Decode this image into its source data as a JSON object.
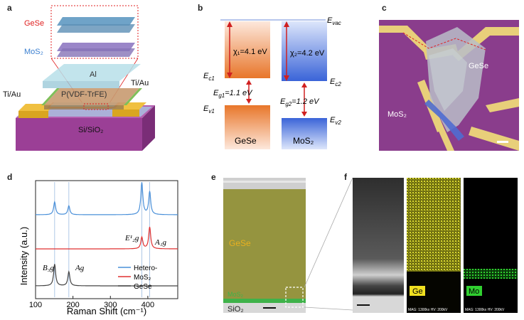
{
  "panels": {
    "a": {
      "label": "a",
      "inset_top": "GeSe",
      "inset_bottom": "MoS₂",
      "layer_al": "Al",
      "layer_pvdf": "P(VDF-TrFE)",
      "contact_left": "Ti/Au",
      "contact_right": "Ti/Au",
      "substrate": "Si/SiO₂"
    },
    "b": {
      "label": "b",
      "e_vac": "E",
      "e_vac_sub": "vac",
      "chi1": "χ₁=4.1 eV",
      "chi2": "χ₂=4.2 eV",
      "ec1": "E",
      "ec1_sub": "c1",
      "ec2": "E",
      "ec2_sub": "c2",
      "eg1": "E",
      "eg1_sub": "g1",
      "eg1_val": "=1.1 eV",
      "eg2": "E",
      "eg2_sub": "g2",
      "eg2_val": "=1.2 eV",
      "ev1": "E",
      "ev1_sub": "v1",
      "ev2": "E",
      "ev2_sub": "v2",
      "mat1": "GeSe",
      "mat2": "MoS₂"
    },
    "c": {
      "label": "c",
      "gese": "GeSe",
      "mos2": "MoS₂"
    },
    "d": {
      "label": "d",
      "peak_e2g": "E¹₂g",
      "peak_a1g": "A₁g",
      "peak_b3g": "B₃g",
      "peak_ag": "Ag",
      "legend": [
        "Hetero-",
        "MoS₂",
        "GeSe"
      ],
      "colors": {
        "hetero": "#4a90d9",
        "mos2": "#e03030",
        "gese": "#444444"
      }
    },
    "e": {
      "label": "e",
      "gese": "GeSe",
      "mos2": "MoS₂",
      "sio2": "SiO₂"
    },
    "f": {
      "label": "f",
      "ge": "Ge",
      "mo": "Mo",
      "mag1": "MAG: 1300kx  HV: 200kV",
      "mag2": "MAG: 1300kx  HV: 200kV"
    }
  },
  "chart_data": {
    "type": "line",
    "xlabel": "Raman Shift (cm⁻¹)",
    "ylabel": "Intensity (a.u.)",
    "xlim": [
      100,
      480
    ],
    "xticks": [
      100,
      200,
      300,
      400
    ],
    "series": [
      {
        "name": "Hetero-",
        "peaks": [
          [
            151,
            1.0
          ],
          [
            189,
            0.7
          ],
          [
            384,
            2.5
          ],
          [
            405,
            1.8
          ]
        ]
      },
      {
        "name": "MoS₂",
        "peaks": [
          [
            384,
            0.9
          ],
          [
            405,
            1.7
          ]
        ]
      },
      {
        "name": "GeSe",
        "peaks": [
          [
            151,
            1.7
          ],
          [
            189,
            1.1
          ]
        ]
      }
    ]
  }
}
